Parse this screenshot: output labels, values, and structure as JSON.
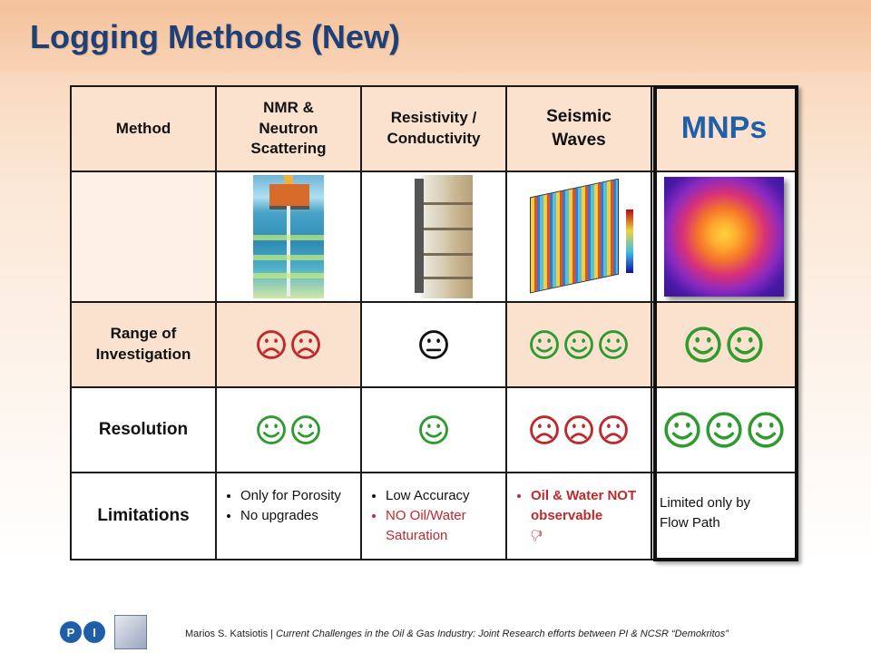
{
  "title": "Logging Methods (New)",
  "header": {
    "method": "Method",
    "nmr": [
      "NMR &",
      "Neutron",
      "Scattering"
    ],
    "resistivity": [
      "Resistivity /",
      "Conductivity"
    ],
    "seismic": [
      "Seismic",
      "Waves"
    ],
    "mnps": "MNPs"
  },
  "row_labels": {
    "range": [
      "Range of",
      "Investigation"
    ],
    "resolution": "Resolution",
    "limitations": "Limitations"
  },
  "ratings": {
    "range": {
      "nmr": {
        "face": "sad",
        "count": 2
      },
      "resistivity": {
        "face": "neutral",
        "count": 1
      },
      "seismic": {
        "face": "happy",
        "count": 3
      },
      "mnps": {
        "face": "happy",
        "count": 2
      }
    },
    "resolution": {
      "nmr": {
        "face": "happy",
        "count": 2
      },
      "resistivity": {
        "face": "happy",
        "count": 1
      },
      "seismic": {
        "face": "sad",
        "count": 3
      },
      "mnps": {
        "face": "happy",
        "count": 3
      }
    }
  },
  "limitations": {
    "nmr": [
      "Only for Porosity",
      "No upgrades"
    ],
    "resistivity": [
      "Low Accuracy",
      "NO Oil/Water Saturation"
    ],
    "seismic": [
      "Oil & Water NOT observable"
    ],
    "seismic_symbol": "🖓",
    "mnps": [
      "Limited only by",
      "Flow Path"
    ]
  },
  "colors": {
    "happy": "#2f9a2f",
    "sad": "#c0282c",
    "neutral": "#111111",
    "title": "#1f3f77",
    "mnps": "#1f5fa8"
  },
  "footer": {
    "logo_pi": [
      "P",
      "I"
    ],
    "author": "Marios S. Katsiotis",
    "separator": "|",
    "talk": "Current Challenges in the Oil & Gas Industry: Joint Research efforts between PI & NCSR “Demokritos”"
  }
}
